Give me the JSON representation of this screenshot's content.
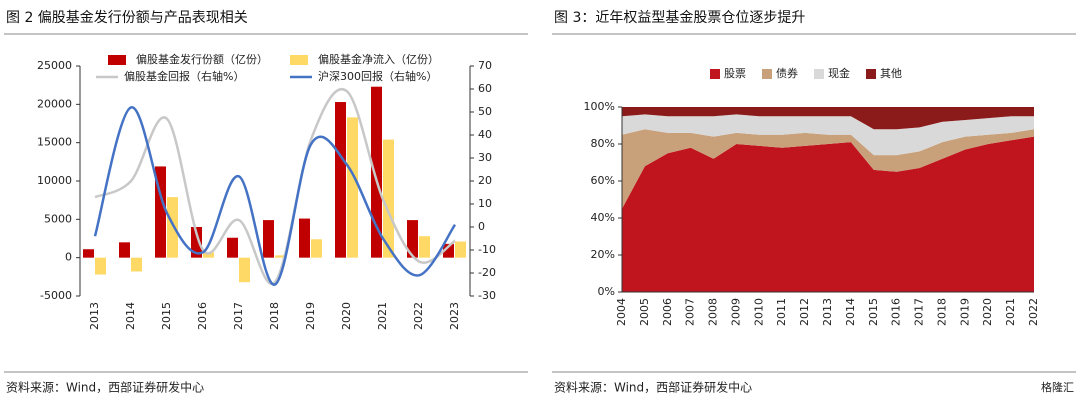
{
  "chart_data": [
    {
      "type": "combo",
      "title": "图 2 偏股基金发行份额与产品表现相关",
      "source": "资料来源：Wind，西部证券研发中心",
      "categories": [
        "2013",
        "2014",
        "2015",
        "2016",
        "2017",
        "2018",
        "2019",
        "2020",
        "2021",
        "2022",
        "2023"
      ],
      "ylim": [
        -5000,
        25000
      ],
      "yticks": [
        -5000,
        0,
        5000,
        10000,
        15000,
        20000,
        25000
      ],
      "y2lim": [
        -30,
        70
      ],
      "y2ticks": [
        -30,
        -20,
        -10,
        0,
        10,
        20,
        30,
        40,
        50,
        60,
        70
      ],
      "series": [
        {
          "name": "偏股基金发行份额（亿份）",
          "type": "bar",
          "color": "#c00000",
          "values": [
            1100,
            2000,
            11900,
            4000,
            2600,
            4900,
            5100,
            20300,
            22300,
            4900,
            1800
          ]
        },
        {
          "name": "偏股基金净流入（亿份）",
          "type": "bar",
          "color": "#ffd966",
          "values": [
            -2200,
            -1800,
            7900,
            700,
            -3200,
            300,
            2400,
            18300,
            15400,
            2800,
            2100
          ]
        },
        {
          "name": "偏股基金回报（右轴%）",
          "type": "line",
          "axis": "y2",
          "color": "#c8c8c8",
          "values": [
            13,
            20,
            47,
            -10,
            3,
            -24,
            38,
            59,
            12,
            -15,
            -6
          ]
        },
        {
          "name": "沪深300回报（右轴%）",
          "type": "line",
          "axis": "y2",
          "color": "#4472c4",
          "values": [
            -4,
            52,
            6,
            -11,
            22,
            -25,
            36,
            27,
            -5,
            -21,
            1
          ]
        }
      ]
    },
    {
      "type": "area",
      "stacked": true,
      "title": "图 3：近年权益型基金股票仓位逐步提升",
      "source": "资料来源：Wind，西部证券研发中心",
      "watermark": "格隆汇",
      "categories": [
        "2004",
        "2005",
        "2006",
        "2007",
        "2008",
        "2009",
        "2010",
        "2011",
        "2012",
        "2013",
        "2014",
        "2015",
        "2016",
        "2017",
        "2018",
        "2019",
        "2020",
        "2021",
        "2022"
      ],
      "ylim": [
        0,
        100
      ],
      "yticks": [
        {
          "value": 0,
          "label": "0%"
        },
        {
          "value": 20,
          "label": "20%"
        },
        {
          "value": 40,
          "label": "40%"
        },
        {
          "value": 60,
          "label": "60%"
        },
        {
          "value": 80,
          "label": "80%"
        },
        {
          "value": 100,
          "label": "100%"
        }
      ],
      "series": [
        {
          "name": "股票",
          "color": "#c0151f",
          "values": [
            45,
            68,
            75,
            78,
            72,
            80,
            79,
            78,
            79,
            80,
            81,
            66,
            65,
            67,
            72,
            77,
            80,
            82,
            84
          ]
        },
        {
          "name": "债券",
          "color": "#c8a07a",
          "values": [
            40,
            20,
            11,
            8,
            12,
            6,
            6,
            7,
            7,
            5,
            4,
            8,
            9,
            9,
            9,
            7,
            5,
            4,
            4
          ]
        },
        {
          "name": "现金",
          "color": "#d9d9d9",
          "values": [
            10,
            8,
            9,
            9,
            11,
            10,
            10,
            10,
            9,
            10,
            10,
            14,
            14,
            13,
            11,
            9,
            9,
            9,
            7
          ]
        },
        {
          "name": "其他",
          "color": "#8b1a1a",
          "values": [
            5,
            4,
            5,
            5,
            5,
            4,
            5,
            5,
            5,
            5,
            5,
            12,
            12,
            11,
            8,
            7,
            6,
            5,
            5
          ]
        }
      ]
    }
  ]
}
